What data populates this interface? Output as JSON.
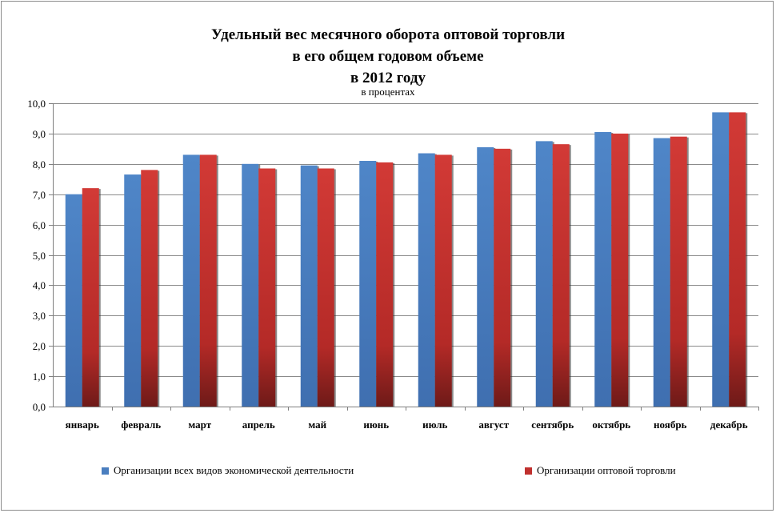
{
  "chart_data": {
    "type": "bar",
    "title_lines": [
      "Удельный вес месячного оборота оптовой торговли",
      "в его общем годовом объеме",
      "в 2012 году"
    ],
    "subtitle": "в процентах",
    "categories": [
      "январь",
      "февраль",
      "март",
      "апрель",
      "май",
      "июнь",
      "июль",
      "август",
      "сентябрь",
      "октябрь",
      "ноябрь",
      "декабрь"
    ],
    "series": [
      {
        "name": "Организации всех видов экономической деятельности",
        "color": "#4a7ebf",
        "values": [
          7.0,
          7.65,
          8.3,
          8.0,
          7.95,
          8.1,
          8.35,
          8.55,
          8.75,
          9.05,
          8.85,
          9.7
        ]
      },
      {
        "name": "Организации оптовой торговли",
        "color": "#c0302e",
        "values": [
          7.2,
          7.8,
          8.3,
          7.85,
          7.85,
          8.05,
          8.3,
          8.5,
          8.65,
          9.0,
          8.9,
          9.7
        ]
      }
    ],
    "ylim": [
      0,
      10
    ],
    "yticks": [
      "0,0",
      "1,0",
      "2,0",
      "3,0",
      "4,0",
      "5,0",
      "6,0",
      "7,0",
      "8,0",
      "9,0",
      "10,0"
    ],
    "grid": true,
    "legend_position": "bottom"
  }
}
